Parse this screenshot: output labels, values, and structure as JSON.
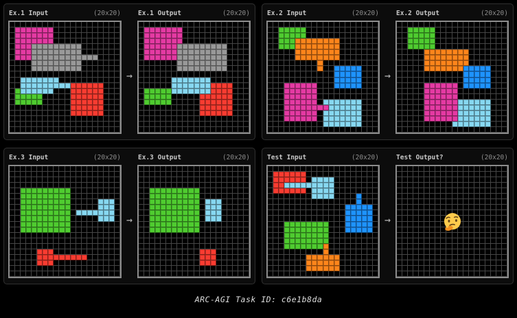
{
  "caption": {
    "text": "ARC-AGI Task ID: c6e1b8da"
  },
  "colors": {
    "1": "#1E93FF",
    "2": "#F93C31",
    "3": "#4FCC30",
    "5": "#999999",
    "6": "#E53AA3",
    "7": "#FF851B",
    "8": "#87D8F1",
    "grid_background": "#000000",
    "grid_line": "#454545",
    "grid_border": "#8c8c8c",
    "panel_background": "#0c0c0c"
  },
  "panels": [
    {
      "arrow": "→",
      "left": {
        "title": "Ex.1 Input",
        "dims": "(20x20)",
        "rows": [
          "....................",
          ".6666666............",
          ".6666666............",
          ".6666666............",
          ".666555555555.......",
          ".666555555555.......",
          ".666555555555555....",
          "....555555555.......",
          "....555555555.......",
          "....................",
          "..8888888...........",
          "..888888888222222...",
          ".3888888...222222...",
          ".33333.....222222...",
          ".33333.....222222...",
          "...........222222...",
          "...........222222...",
          "....................",
          "....................",
          "...................."
        ]
      },
      "right": {
        "title": "Ex.1 Output",
        "dims": "(20x20)",
        "rows": [
          "....................",
          ".6666666............",
          ".6666666............",
          ".6666666............",
          ".666666555555555....",
          ".666666555555555....",
          ".666666555555555....",
          ".......555555555....",
          ".......555555555....",
          "....................",
          "......8888888.......",
          "......88888882222...",
          ".3333388888882222...",
          ".33333.....222222...",
          ".33333.....222222...",
          "...........222222...",
          "...........222222...",
          "....................",
          "....................",
          "...................."
        ]
      }
    },
    {
      "arrow": "→",
      "left": {
        "title": "Ex.2 Input",
        "dims": "(20x20)",
        "rows": [
          "....................",
          "..33333.............",
          "..33333.............",
          "..33377777777.......",
          "..33377777777.......",
          ".....77777777.......",
          ".....77777777.......",
          ".........7..........",
          ".........7..11111...",
          "............11111...",
          "............11111...",
          "...666666...11111...",
          "...666666...........",
          "...666666...........",
          "...666666.8888888...",
          "...66666666888888...",
          "...666666.8888888...",
          "...666666.8888888...",
          "..........8888888...",
          "...................."
        ]
      },
      "right": {
        "title": "Ex.2 Output",
        "dims": "(20x20)",
        "rows": [
          "....................",
          "..33333.............",
          "..33333.............",
          "..33333.............",
          "..33333.............",
          ".....77777777.......",
          ".....77777777.......",
          ".....77777777.......",
          ".....777777711111...",
          "............11111...",
          "............11111...",
          ".....666666.11111...",
          ".....666666.........",
          ".....666666.........",
          ".....666666888888...",
          ".....666666888888...",
          ".....666666888888...",
          ".....666666888888...",
          "..........8888888...",
          "...................."
        ]
      }
    },
    {
      "arrow": "→",
      "left": {
        "title": "Ex.3 Input",
        "dims": "(20x20)",
        "rows": [
          "....................",
          "....................",
          "....................",
          "....................",
          "..333333333.........",
          "..333333333.........",
          "..333333333.....888.",
          "..333333333.....888.",
          "..333333333.8888888.",
          "..333333333.....888.",
          "..333333333.........",
          "..333333333.........",
          "....................",
          "....................",
          "....................",
          ".....222............",
          ".....222222222......",
          ".....222............",
          "....................",
          "...................."
        ]
      },
      "right": {
        "title": "Ex.3 Output",
        "dims": "(20x20)",
        "rows": [
          "....................",
          "....................",
          "....................",
          "....................",
          "..333333333.........",
          "..333333333.........",
          "..333333333.888.....",
          "..333333333.888.....",
          "..333333333.888.....",
          "..333333333.888.....",
          "..333333333.........",
          "..333333333.........",
          "....................",
          "....................",
          "....................",
          "...........222......",
          "...........222......",
          "...........222......",
          "....................",
          "...................."
        ]
      }
    },
    {
      "arrow": "→",
      "left": {
        "title": "Test Input",
        "dims": "(20x20)",
        "rows": [
          "....................",
          ".222222.............",
          ".222222.8888........",
          ".22888888888........",
          ".222222.8888........",
          "........8888....1...",
          "................1...",
          "..............11111.",
          "..............11111.",
          "..............11111.",
          "...33333333...11111.",
          "...33333333...11111.",
          "...33333333.........",
          "...33333333.........",
          "...33333337.........",
          "..........7.........",
          ".......777777.......",
          ".......777777.......",
          ".......777777.......",
          "...................."
        ]
      },
      "right": {
        "title": "Test Output?",
        "dims": "(20x20)",
        "emoji": "🤔",
        "rows": [
          "....................",
          "....................",
          "....................",
          "....................",
          "....................",
          "....................",
          "....................",
          "....................",
          "....................",
          "....................",
          "....................",
          "....................",
          "....................",
          "....................",
          "....................",
          "....................",
          "....................",
          "....................",
          "....................",
          "...................."
        ]
      }
    }
  ]
}
